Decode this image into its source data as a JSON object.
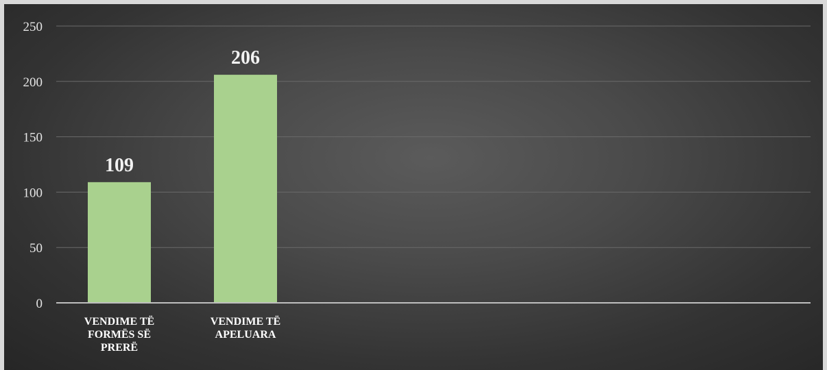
{
  "chart_data": {
    "type": "bar",
    "categories": [
      [
        "VENDIME TË",
        "FORMËS SË",
        "PRERË"
      ],
      [
        "VENDIME TË",
        "APELUARA"
      ]
    ],
    "values": [
      109,
      206
    ],
    "ylim": [
      0,
      250
    ],
    "yticks": [
      0,
      50,
      100,
      150,
      200,
      250
    ],
    "grid": true,
    "colors": {
      "bar": "#a9d18e",
      "background": "#404040",
      "frame": "#d9d9d9"
    }
  }
}
